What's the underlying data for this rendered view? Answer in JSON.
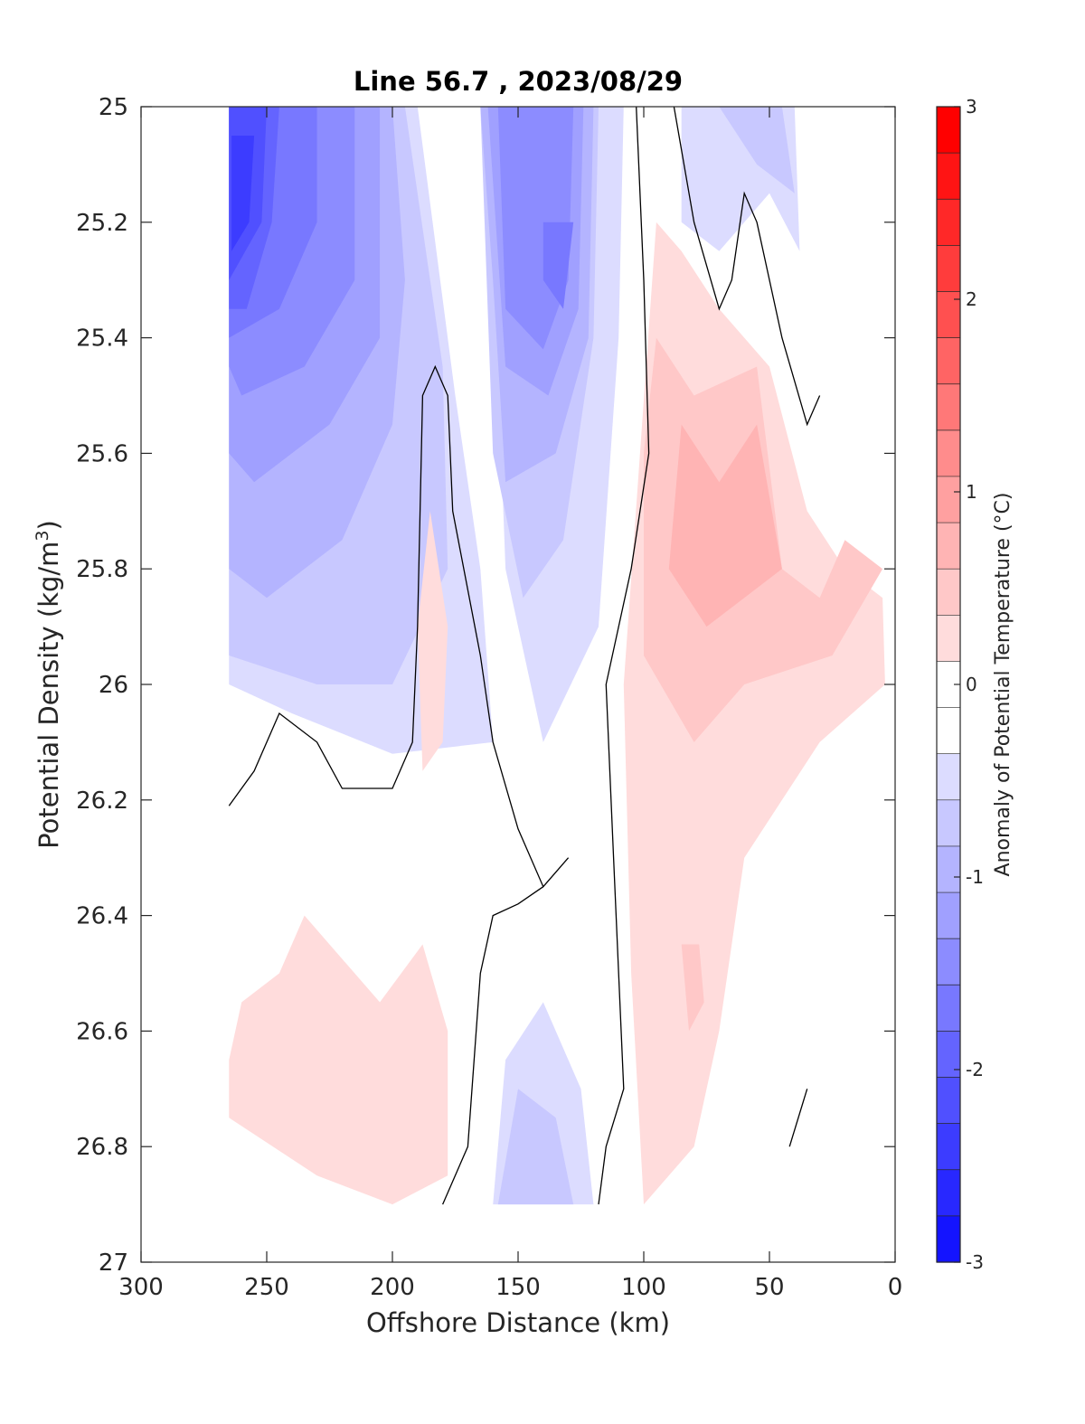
{
  "chart_data": {
    "type": "contour",
    "title": "Line 56.7 , 2023/08/29",
    "xlabel": "Offshore Distance (km)",
    "ylabel_main": "Potential Density (kg/m",
    "ylabel_sup": "3",
    "ylabel_close": ")",
    "x_reversed": true,
    "xlim": [
      0,
      300
    ],
    "ylim": [
      25,
      27
    ],
    "y_reversed": true,
    "xticks": [
      "300",
      "250",
      "200",
      "150",
      "100",
      "50",
      "0"
    ],
    "xtick_values": [
      300,
      250,
      200,
      150,
      100,
      50,
      0
    ],
    "yticks": [
      "25",
      "25.2",
      "25.4",
      "25.6",
      "25.8",
      "26",
      "26.2",
      "26.4",
      "26.6",
      "26.8",
      "27"
    ],
    "ytick_values": [
      25,
      25.2,
      25.4,
      25.6,
      25.8,
      26,
      26.2,
      26.4,
      26.6,
      26.8,
      27
    ],
    "colorbar": {
      "label": "Anomaly of Potential Temperature (°C)",
      "range": [
        -3,
        3
      ],
      "step": 0.25,
      "ticks": [
        "3",
        "2",
        "1",
        "0",
        "-1",
        "-2",
        "-3"
      ],
      "tick_values": [
        3,
        2,
        1,
        0,
        -1,
        -2,
        -3
      ],
      "colors_top_to_bottom": [
        "#ff0000",
        "#ff1414",
        "#ff2828",
        "#ff3c3c",
        "#ff5050",
        "#ff6464",
        "#ff7878",
        "#ff8c8c",
        "#ffa0a0",
        "#ffb4b4",
        "#ffc8c8",
        "#ffdcdc",
        "#ffffff",
        "#ffffff",
        "#dcdcff",
        "#c8c8ff",
        "#b4b4ff",
        "#a0a0ff",
        "#8c8cff",
        "#7878ff",
        "#6464ff",
        "#5050ff",
        "#3c3cff",
        "#2828ff",
        "#1414ff"
      ]
    },
    "contour_fields": [
      {
        "value": -0.25,
        "color": "#dcdcff",
        "points": [
          [
            265,
            25.0
          ],
          [
            190,
            25.0
          ],
          [
            175,
            25.5
          ],
          [
            165,
            25.8
          ],
          [
            160,
            26.1
          ],
          [
            200,
            26.12
          ],
          [
            240,
            26.05
          ],
          [
            265,
            26.0
          ]
        ]
      },
      {
        "value": -0.25,
        "color": "#dcdcff",
        "points": [
          [
            162,
            25.0
          ],
          [
            108,
            25.0
          ],
          [
            110,
            25.4
          ],
          [
            118,
            25.9
          ],
          [
            140,
            26.1
          ],
          [
            155,
            25.8
          ]
        ]
      },
      {
        "value": -0.25,
        "color": "#dcdcff",
        "points": [
          [
            85,
            25.0
          ],
          [
            40,
            25.0
          ],
          [
            38,
            25.25
          ],
          [
            50,
            25.15
          ],
          [
            70,
            25.25
          ],
          [
            85,
            25.2
          ]
        ]
      },
      {
        "value": -0.25,
        "color": "#dcdcff",
        "points": [
          [
            160,
            26.9
          ],
          [
            120,
            26.9
          ],
          [
            125,
            26.7
          ],
          [
            140,
            26.55
          ],
          [
            155,
            26.65
          ]
        ]
      },
      {
        "value": -0.5,
        "color": "#c8c8ff",
        "points": [
          [
            265,
            25.0
          ],
          [
            195,
            25.0
          ],
          [
            185,
            25.3
          ],
          [
            180,
            25.45
          ],
          [
            178,
            25.8
          ],
          [
            200,
            26.0
          ],
          [
            230,
            26.0
          ],
          [
            265,
            25.95
          ]
        ]
      },
      {
        "value": -0.5,
        "color": "#c8c8ff",
        "points": [
          [
            165,
            25.0
          ],
          [
            118,
            25.0
          ],
          [
            120,
            25.4
          ],
          [
            132,
            25.75
          ],
          [
            148,
            25.85
          ],
          [
            160,
            25.6
          ]
        ]
      },
      {
        "value": -0.5,
        "color": "#c8c8ff",
        "points": [
          [
            70,
            25.0
          ],
          [
            45,
            25.0
          ],
          [
            40,
            25.15
          ],
          [
            55,
            25.1
          ]
        ]
      },
      {
        "value": -0.5,
        "color": "#c8c8ff",
        "points": [
          [
            158,
            26.9
          ],
          [
            128,
            26.9
          ],
          [
            135,
            26.75
          ],
          [
            150,
            26.7
          ]
        ]
      },
      {
        "value": -0.75,
        "color": "#b4b4ff",
        "points": [
          [
            265,
            25.0
          ],
          [
            200,
            25.0
          ],
          [
            195,
            25.3
          ],
          [
            200,
            25.55
          ],
          [
            220,
            25.75
          ],
          [
            250,
            25.85
          ],
          [
            265,
            25.8
          ]
        ]
      },
      {
        "value": -0.75,
        "color": "#b4b4ff",
        "points": [
          [
            165,
            25.0
          ],
          [
            120,
            25.0
          ],
          [
            122,
            25.4
          ],
          [
            135,
            25.6
          ],
          [
            155,
            25.65
          ],
          [
            160,
            25.3
          ]
        ]
      },
      {
        "value": -1.0,
        "color": "#a0a0ff",
        "points": [
          [
            265,
            25.0
          ],
          [
            205,
            25.0
          ],
          [
            205,
            25.4
          ],
          [
            225,
            25.55
          ],
          [
            255,
            25.65
          ],
          [
            265,
            25.6
          ]
        ]
      },
      {
        "value": -1.0,
        "color": "#a0a0ff",
        "points": [
          [
            162,
            25.0
          ],
          [
            124,
            25.0
          ],
          [
            126,
            25.35
          ],
          [
            138,
            25.5
          ],
          [
            155,
            25.45
          ]
        ]
      },
      {
        "value": -1.25,
        "color": "#8c8cff",
        "points": [
          [
            265,
            25.0
          ],
          [
            215,
            25.0
          ],
          [
            215,
            25.3
          ],
          [
            235,
            25.45
          ],
          [
            260,
            25.5
          ],
          [
            265,
            25.45
          ]
        ]
      },
      {
        "value": -1.25,
        "color": "#8c8cff",
        "points": [
          [
            158,
            25.0
          ],
          [
            128,
            25.0
          ],
          [
            130,
            25.3
          ],
          [
            140,
            25.42
          ],
          [
            155,
            25.35
          ]
        ]
      },
      {
        "value": -1.5,
        "color": "#7878ff",
        "points": [
          [
            265,
            25.0
          ],
          [
            230,
            25.0
          ],
          [
            230,
            25.2
          ],
          [
            245,
            25.35
          ],
          [
            265,
            25.4
          ]
        ]
      },
      {
        "value": -1.5,
        "color": "#7878ff",
        "points": [
          [
            140,
            25.2
          ],
          [
            128,
            25.2
          ],
          [
            132,
            25.35
          ],
          [
            140,
            25.3
          ]
        ]
      },
      {
        "value": -1.75,
        "color": "#6464ff",
        "points": [
          [
            265,
            25.0
          ],
          [
            245,
            25.0
          ],
          [
            248,
            25.2
          ],
          [
            258,
            25.35
          ],
          [
            265,
            25.35
          ]
        ]
      },
      {
        "value": -2.0,
        "color": "#5050ff",
        "points": [
          [
            265,
            25.0
          ],
          [
            250,
            25.0
          ],
          [
            252,
            25.2
          ],
          [
            265,
            25.3
          ]
        ]
      },
      {
        "value": -2.25,
        "color": "#3c3cff",
        "points": [
          [
            264,
            25.05
          ],
          [
            255,
            25.05
          ],
          [
            257,
            25.2
          ],
          [
            264,
            25.25
          ]
        ]
      },
      {
        "value": 0.25,
        "color": "#ffdcdc",
        "points": [
          [
            95,
            25.2
          ],
          [
            85,
            25.25
          ],
          [
            70,
            25.35
          ],
          [
            50,
            25.45
          ],
          [
            35,
            25.7
          ],
          [
            20,
            25.8
          ],
          [
            5,
            25.85
          ],
          [
            4,
            26.0
          ],
          [
            30,
            26.1
          ],
          [
            60,
            26.3
          ],
          [
            70,
            26.6
          ],
          [
            80,
            26.8
          ],
          [
            100,
            26.9
          ],
          [
            105,
            26.5
          ],
          [
            108,
            26.0
          ]
        ]
      },
      {
        "value": 0.25,
        "color": "#ffdcdc",
        "points": [
          [
            265,
            26.65
          ],
          [
            260,
            26.55
          ],
          [
            245,
            26.5
          ],
          [
            235,
            26.4
          ],
          [
            205,
            26.55
          ],
          [
            188,
            26.45
          ],
          [
            178,
            26.6
          ],
          [
            178,
            26.85
          ],
          [
            200,
            26.9
          ],
          [
            230,
            26.85
          ],
          [
            265,
            26.75
          ]
        ]
      },
      {
        "value": 0.25,
        "color": "#ffdcdc",
        "points": [
          [
            185,
            25.7
          ],
          [
            178,
            25.9
          ],
          [
            180,
            26.1
          ],
          [
            188,
            26.15
          ],
          [
            190,
            25.9
          ]
        ]
      },
      {
        "value": 0.5,
        "color": "#ffc8c8",
        "points": [
          [
            95,
            25.4
          ],
          [
            80,
            25.5
          ],
          [
            55,
            25.45
          ],
          [
            45,
            25.8
          ],
          [
            30,
            25.85
          ],
          [
            20,
            25.75
          ],
          [
            5,
            25.8
          ],
          [
            25,
            25.95
          ],
          [
            60,
            26.0
          ],
          [
            80,
            26.1
          ],
          [
            100,
            25.95
          ],
          [
            100,
            25.6
          ]
        ]
      },
      {
        "value": 0.5,
        "color": "#ffc8c8",
        "points": [
          [
            85,
            26.45
          ],
          [
            78,
            26.45
          ],
          [
            76,
            26.55
          ],
          [
            82,
            26.6
          ]
        ]
      },
      {
        "value": 0.75,
        "color": "#ffb4b4",
        "points": [
          [
            85,
            25.55
          ],
          [
            70,
            25.65
          ],
          [
            55,
            25.55
          ],
          [
            45,
            25.8
          ],
          [
            60,
            25.85
          ],
          [
            75,
            25.9
          ],
          [
            90,
            25.8
          ]
        ]
      }
    ],
    "zero_contours": [
      [
        [
          265,
          26.21
        ],
        [
          255,
          26.15
        ],
        [
          245,
          26.05
        ],
        [
          230,
          26.1
        ],
        [
          220,
          26.18
        ],
        [
          200,
          26.18
        ],
        [
          192,
          26.1
        ],
        [
          190,
          25.9
        ],
        [
          188,
          25.5
        ],
        [
          183,
          25.45
        ],
        [
          178,
          25.5
        ],
        [
          176,
          25.7
        ],
        [
          165,
          25.95
        ],
        [
          160,
          26.1
        ],
        [
          150,
          26.25
        ],
        [
          140,
          26.35
        ],
        [
          130,
          26.3
        ],
        [
          140,
          26.35
        ],
        [
          150,
          26.38
        ],
        [
          160,
          26.4
        ],
        [
          165,
          26.5
        ],
        [
          170,
          26.8
        ],
        [
          180,
          26.9
        ]
      ],
      [
        [
          103,
          25.0
        ],
        [
          100,
          25.3
        ],
        [
          98,
          25.6
        ],
        [
          105,
          25.8
        ],
        [
          115,
          26.0
        ],
        [
          112,
          26.3
        ],
        [
          110,
          26.5
        ],
        [
          108,
          26.7
        ],
        [
          115,
          26.8
        ],
        [
          118,
          26.9
        ]
      ],
      [
        [
          88,
          25.0
        ],
        [
          80,
          25.2
        ],
        [
          70,
          25.35
        ],
        [
          65,
          25.3
        ],
        [
          60,
          25.15
        ],
        [
          55,
          25.2
        ],
        [
          45,
          25.4
        ],
        [
          35,
          25.55
        ],
        [
          30,
          25.5
        ]
      ],
      [
        [
          35,
          26.7
        ],
        [
          42,
          26.8
        ]
      ]
    ]
  }
}
